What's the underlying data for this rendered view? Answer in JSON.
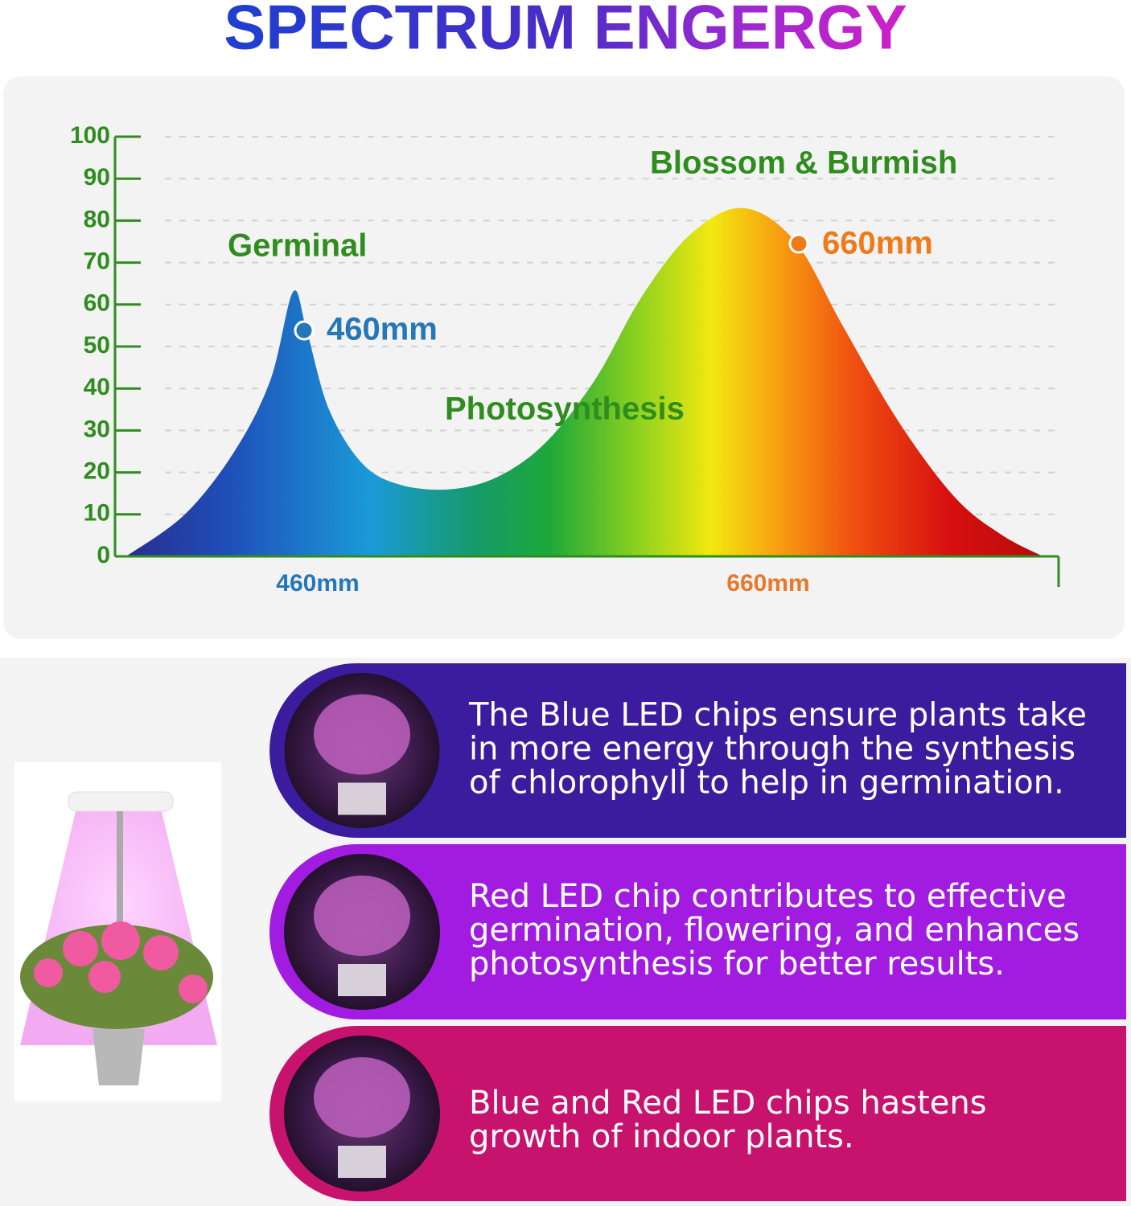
{
  "chart_data": {
    "type": "area",
    "title": "SPECTRUM ENGERGY",
    "x": [
      375,
      401,
      423,
      439,
      449,
      455,
      465,
      480,
      497,
      519,
      540,
      561,
      583,
      604,
      626,
      649,
      672,
      693,
      718,
      743,
      764,
      782
    ],
    "values": [
      0,
      10,
      25,
      42,
      63,
      54,
      35,
      22,
      17,
      16,
      19,
      27,
      42,
      62,
      77,
      83,
      75,
      55,
      32,
      14,
      5,
      0
    ],
    "xlim": [
      370,
      790
    ],
    "xticks": [
      {
        "value": 460,
        "label": "460mm"
      },
      {
        "value": 660,
        "label": "660mm"
      }
    ],
    "ylim": [
      0,
      100
    ],
    "yticks": [
      0,
      10,
      20,
      30,
      40,
      50,
      60,
      70,
      80,
      90,
      100
    ],
    "grid": true,
    "annotations": [
      {
        "text": "Germinal"
      },
      {
        "text": "460mm"
      },
      {
        "text": "Photosynthesis"
      },
      {
        "text": "Blossom & Burmish"
      },
      {
        "text": "660mm"
      }
    ]
  },
  "panels": [
    {
      "lines": [
        "The Blue LED chips ensure plants take",
        "in more energy through the synthesis",
        "of chlorophyll to help in germination."
      ]
    },
    {
      "lines": [
        "Red LED chip contributes to effective",
        "germination, flowering, and enhances",
        "photosynthesis for better results."
      ]
    },
    {
      "lines": [
        "Blue and Red LED chips hastens",
        "growth of indoor plants."
      ]
    }
  ]
}
